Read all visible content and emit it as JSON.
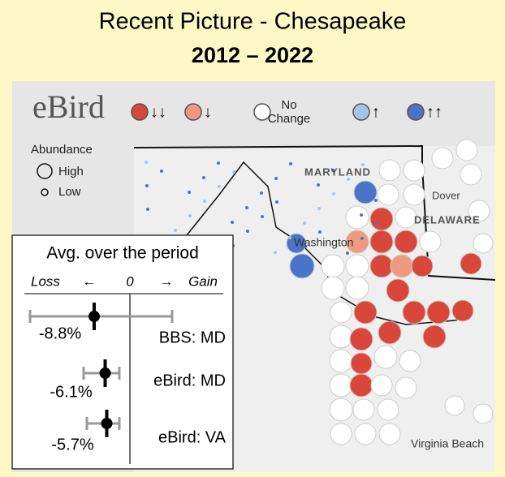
{
  "header": {
    "title": "Recent Picture - Chesapeake",
    "subtitle": "2012 – 2022"
  },
  "legend": {
    "logo": "eBird",
    "items": [
      "↓↓",
      "↓",
      "No Change",
      "↑",
      "↑↑"
    ],
    "colors": [
      "#d9463a",
      "#ef9a80",
      "#ffffff",
      "#a3c6e8",
      "#4a74c9"
    ],
    "abundance_title": "Abundance",
    "abundance_items": [
      "High",
      "Low"
    ]
  },
  "map": {
    "labels": [
      "MARYLAND",
      "DELAWARE",
      "Dover",
      "Washington",
      "Virginia Beach"
    ]
  },
  "chart_data": {
    "type": "forest",
    "title": "Avg. over the period",
    "loss_label": "Loss",
    "left_arrow": "←",
    "right_arrow": "→",
    "gain_label": "Gain",
    "categories": [
      "BBS: MD",
      "eBird: MD",
      "eBird: VA"
    ],
    "values": [
      -8.8,
      -6.1,
      -5.7
    ],
    "value_labels": [
      "-8.8%",
      "-6.1%",
      "-5.7%"
    ],
    "lower": [
      -24.6,
      -11.4,
      -10.6
    ],
    "upper": [
      10.4,
      -2.6,
      -2.6
    ],
    "xlim": [
      -28,
      25
    ],
    "xticks": [
      0
    ]
  }
}
